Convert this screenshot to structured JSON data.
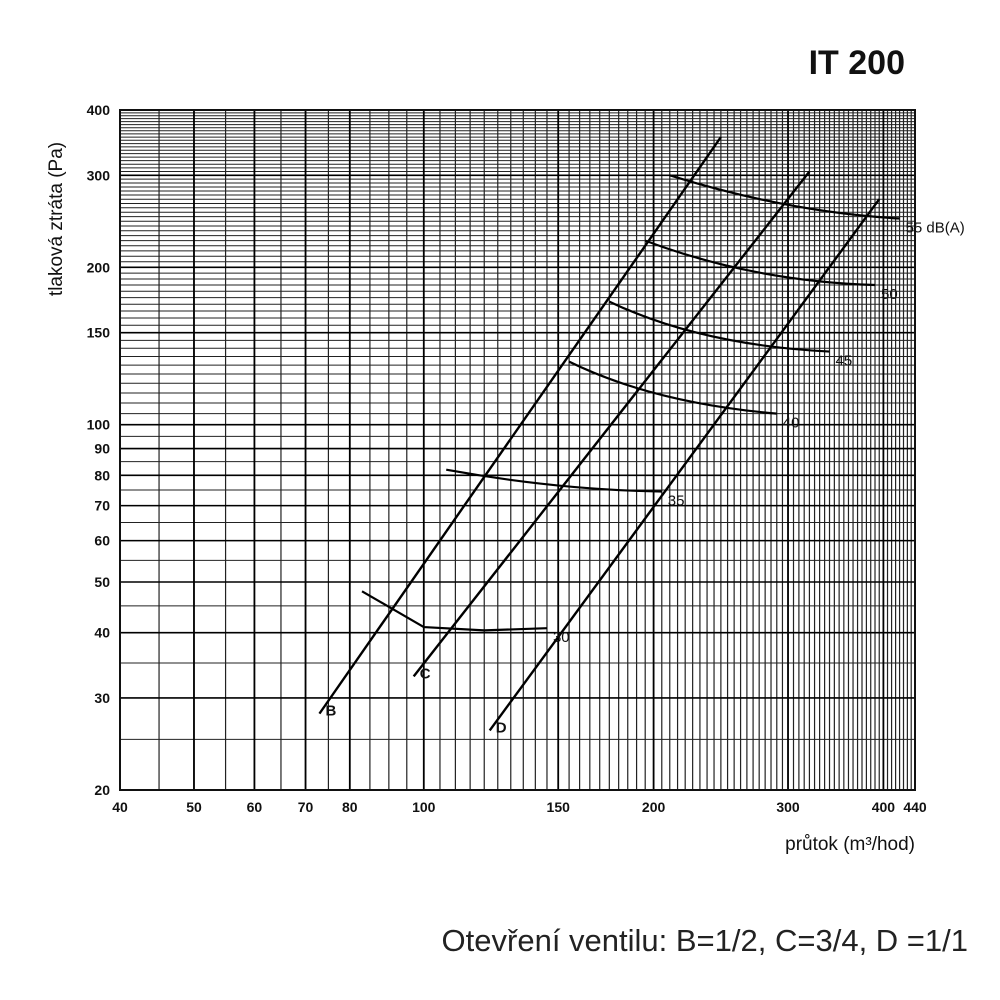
{
  "chart_data": {
    "type": "line",
    "title": "IT 200",
    "xlabel": "průtok (m³/hod)",
    "ylabel": "tlaková ztráta (Pa)",
    "x_scale": "log",
    "y_scale": "log",
    "xlim": [
      40,
      440
    ],
    "ylim": [
      20,
      400
    ],
    "x_ticks": [
      40,
      50,
      60,
      70,
      80,
      100,
      150,
      200,
      300,
      400,
      440
    ],
    "y_ticks": [
      20,
      30,
      40,
      50,
      60,
      70,
      80,
      90,
      100,
      150,
      200,
      300,
      400
    ],
    "grid": true,
    "series": [
      {
        "name": "B",
        "points": [
          [
            73,
            28
          ],
          [
            245,
            355
          ]
        ]
      },
      {
        "name": "C",
        "points": [
          [
            97,
            33
          ],
          [
            320,
            305
          ]
        ]
      },
      {
        "name": "D",
        "points": [
          [
            122,
            26
          ],
          [
            395,
            270
          ]
        ]
      }
    ],
    "noise_curves": [
      {
        "name": "30",
        "points": [
          [
            83,
            48
          ],
          [
            100,
            41
          ],
          [
            120,
            40.4
          ],
          [
            145,
            40.8
          ]
        ]
      },
      {
        "name": "35",
        "points": [
          [
            107,
            82
          ],
          [
            150,
            75
          ],
          [
            205,
            74.5
          ]
        ]
      },
      {
        "name": "40",
        "points": [
          [
            155,
            132
          ],
          [
            200,
            110
          ],
          [
            290,
            105
          ]
        ]
      },
      {
        "name": "45",
        "points": [
          [
            175,
            172
          ],
          [
            230,
            142
          ],
          [
            340,
            138
          ]
        ]
      },
      {
        "name": "50",
        "points": [
          [
            195,
            225
          ],
          [
            270,
            188
          ],
          [
            390,
            185
          ]
        ]
      },
      {
        "name": "55 dB(A)",
        "points": [
          [
            210,
            300
          ],
          [
            300,
            255
          ],
          [
            420,
            248
          ]
        ]
      }
    ],
    "footer": "Otevření ventilu: B=1/2, C=3/4, D =1/1"
  }
}
